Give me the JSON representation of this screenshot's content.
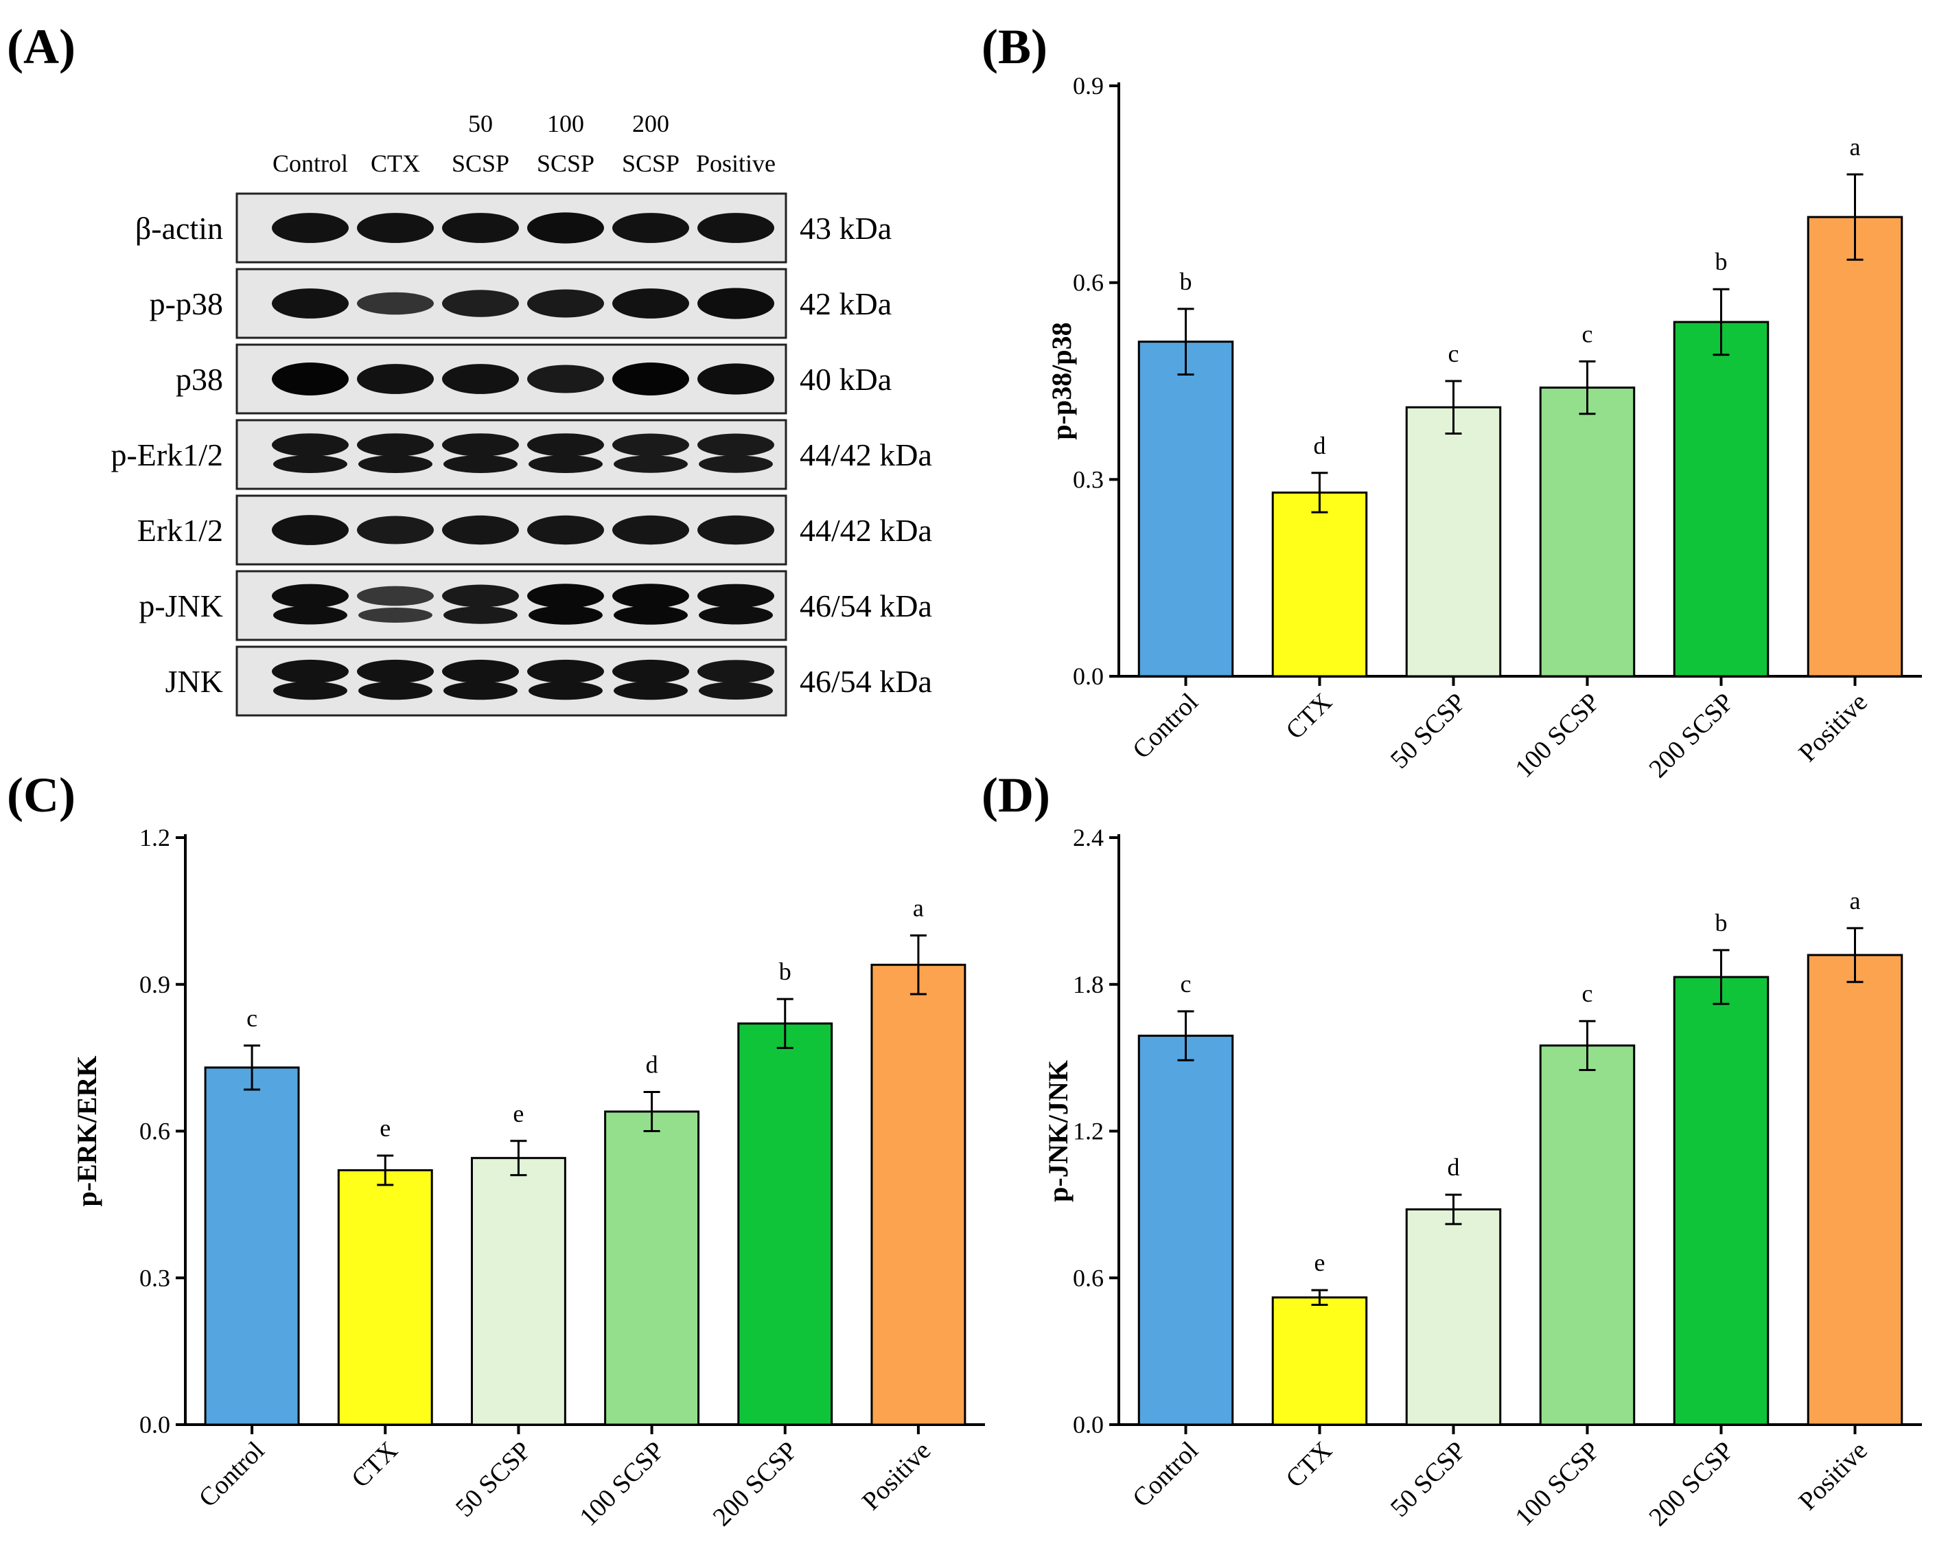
{
  "panel_labels": {
    "A": "(A)",
    "B": "(B)",
    "C": "(C)",
    "D": "(D)"
  },
  "western_blot": {
    "lanes": [
      {
        "top": "",
        "bottom": "Control"
      },
      {
        "top": "",
        "bottom": "CTX"
      },
      {
        "top": "50",
        "bottom": "SCSP"
      },
      {
        "top": "100",
        "bottom": "SCSP"
      },
      {
        "top": "200",
        "bottom": "SCSP"
      },
      {
        "top": "",
        "bottom": "Positive"
      }
    ],
    "rows": [
      {
        "protein": "β-actin",
        "size": "43 kDa",
        "pattern": "single",
        "intensity": [
          0.85,
          0.85,
          0.85,
          0.9,
          0.85,
          0.85
        ]
      },
      {
        "protein": "p-p38",
        "size": "42 kDa",
        "pattern": "single",
        "intensity": [
          0.85,
          0.45,
          0.7,
          0.75,
          0.85,
          0.9
        ]
      },
      {
        "protein": "p38",
        "size": "40 kDa",
        "pattern": "single",
        "intensity": [
          1.0,
          0.85,
          0.85,
          0.75,
          1.0,
          0.9
        ]
      },
      {
        "protein": "p-Erk1/2",
        "size": "44/42 kDa",
        "pattern": "double",
        "intensity": [
          0.8,
          0.8,
          0.8,
          0.8,
          0.75,
          0.75
        ]
      },
      {
        "protein": "Erk1/2",
        "size": "44/42 kDa",
        "pattern": "single",
        "intensity": [
          0.85,
          0.75,
          0.8,
          0.8,
          0.8,
          0.8
        ]
      },
      {
        "protein": "p-JNK",
        "size": "46/54 kDa",
        "pattern": "double",
        "intensity": [
          0.9,
          0.4,
          0.75,
          0.95,
          0.95,
          0.9
        ]
      },
      {
        "protein": "JNK",
        "size": "46/54 kDa",
        "pattern": "double",
        "intensity": [
          0.85,
          0.85,
          0.85,
          0.85,
          0.85,
          0.8
        ]
      }
    ]
  },
  "colors": [
    "#55a5e0",
    "#ffff1a",
    "#e2f3d8",
    "#93df8c",
    "#10c43a",
    "#fba34f"
  ],
  "chart_data": [
    {
      "panel": "B",
      "type": "bar",
      "ylabel": "p-p38/p38",
      "categories": [
        "Control",
        "CTX",
        "50 SCSP",
        "100 SCSP",
        "200 SCSP",
        "Positive"
      ],
      "values": [
        0.51,
        0.28,
        0.41,
        0.44,
        0.54,
        0.7
      ],
      "errors": [
        0.05,
        0.03,
        0.04,
        0.04,
        0.05,
        0.065
      ],
      "letters": [
        "b",
        "d",
        "c",
        "c",
        "b",
        "a"
      ],
      "ylim": [
        0,
        0.9
      ],
      "yticks": [
        "0.0",
        "0.3",
        "0.6",
        "0.9"
      ]
    },
    {
      "panel": "C",
      "type": "bar",
      "ylabel": "p-ERK/ERK",
      "categories": [
        "Control",
        "CTX",
        "50 SCSP",
        "100 SCSP",
        "200 SCSP",
        "Positive"
      ],
      "values": [
        0.73,
        0.52,
        0.545,
        0.64,
        0.82,
        0.94
      ],
      "errors": [
        0.045,
        0.03,
        0.035,
        0.04,
        0.05,
        0.06
      ],
      "letters": [
        "c",
        "e",
        "e",
        "d",
        "b",
        "a"
      ],
      "ylim": [
        0,
        1.2
      ],
      "yticks": [
        "0.0",
        "0.3",
        "0.6",
        "0.9",
        "1.2"
      ]
    },
    {
      "panel": "D",
      "type": "bar",
      "ylabel": "p-JNK/JNK",
      "categories": [
        "Control",
        "CTX",
        "50 SCSP",
        "100 SCSP",
        "200 SCSP",
        "Positive"
      ],
      "values": [
        1.59,
        0.52,
        0.88,
        1.55,
        1.83,
        1.92
      ],
      "errors": [
        0.1,
        0.03,
        0.06,
        0.1,
        0.11,
        0.11
      ],
      "letters": [
        "c",
        "e",
        "d",
        "c",
        "b",
        "a"
      ],
      "ylim": [
        0,
        2.4
      ],
      "yticks": [
        "0.0",
        "0.6",
        "1.2",
        "1.8",
        "2.4"
      ]
    }
  ]
}
